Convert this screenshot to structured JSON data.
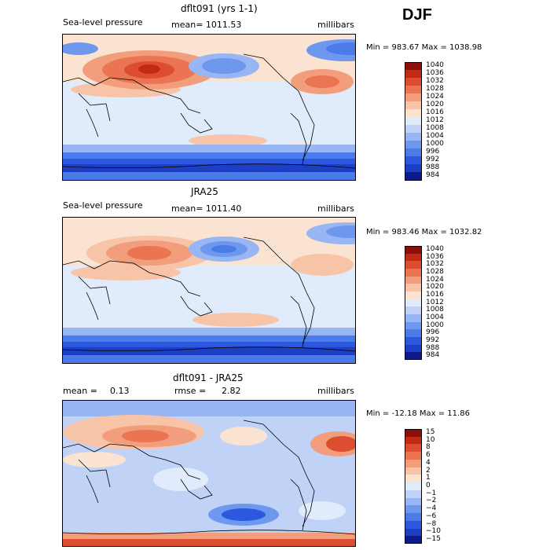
{
  "season": "DJF",
  "chart_data": [
    {
      "type": "heatmap",
      "title": "dflt091 (yrs 1-1)",
      "variable": "Sea-level pressure",
      "mean_label": "mean= 1011.53",
      "units": "millibars",
      "min_max": "Min = 983.67 Max = 1038.98",
      "levels": [
        984,
        988,
        992,
        996,
        1000,
        1004,
        1008,
        1012,
        1016,
        1020,
        1024,
        1028,
        1032,
        1036,
        1040
      ],
      "level_labels": [
        "1040",
        "1036",
        "1032",
        "1028",
        "1024",
        "1020",
        "1016",
        "1012",
        "1008",
        "1004",
        "1000",
        "996",
        "992",
        "988",
        "984"
      ],
      "colors": [
        "#0d1a8a",
        "#1d3fc4",
        "#2b58de",
        "#4b7be8",
        "#6e97ee",
        "#98b6f3",
        "#c0d3f7",
        "#e0ebfb",
        "#fbe3d2",
        "#f8c4a8",
        "#f29e7d",
        "#eb7553",
        "#dd4d30",
        "#c22a16",
        "#8c0e08"
      ]
    },
    {
      "type": "heatmap",
      "title": "JRA25",
      "variable": "Sea-level pressure",
      "mean_label": "mean= 1011.40",
      "units": "millibars",
      "min_max": "Min = 983.46 Max = 1032.82",
      "levels": [
        984,
        988,
        992,
        996,
        1000,
        1004,
        1008,
        1012,
        1016,
        1020,
        1024,
        1028,
        1032,
        1036,
        1040
      ],
      "level_labels": [
        "1040",
        "1036",
        "1032",
        "1028",
        "1024",
        "1020",
        "1016",
        "1012",
        "1008",
        "1004",
        "1000",
        "996",
        "992",
        "988",
        "984"
      ],
      "colors": [
        "#0d1a8a",
        "#1d3fc4",
        "#2b58de",
        "#4b7be8",
        "#6e97ee",
        "#98b6f3",
        "#c0d3f7",
        "#e0ebfb",
        "#fbe3d2",
        "#f8c4a8",
        "#f29e7d",
        "#eb7553",
        "#dd4d30",
        "#c22a16",
        "#8c0e08"
      ]
    },
    {
      "type": "heatmap",
      "title": "dflt091 - JRA25",
      "mean_text": "mean =",
      "mean_value": "0.13",
      "rmse_text": "rmse =",
      "rmse_value": "2.82",
      "units": "millibars",
      "min_max": "Min = -12.18 Max =  11.86",
      "levels": [
        -15,
        -10,
        -8,
        -6,
        -4,
        -2,
        -1,
        0,
        1,
        2,
        4,
        6,
        8,
        10,
        15
      ],
      "level_labels": [
        "15",
        "10",
        "8",
        "6",
        "4",
        "2",
        "1",
        "0",
        "−1",
        "−2",
        "−4",
        "−6",
        "−8",
        "−10",
        "−15"
      ],
      "colors": [
        "#0d1a8a",
        "#1d3fc4",
        "#2b58de",
        "#4b7be8",
        "#6e97ee",
        "#98b6f3",
        "#c0d3f7",
        "#e0ebfb",
        "#fbe3d2",
        "#f8c4a8",
        "#f29e7d",
        "#eb7553",
        "#dd4d30",
        "#c22a16",
        "#8c0e08"
      ]
    }
  ]
}
